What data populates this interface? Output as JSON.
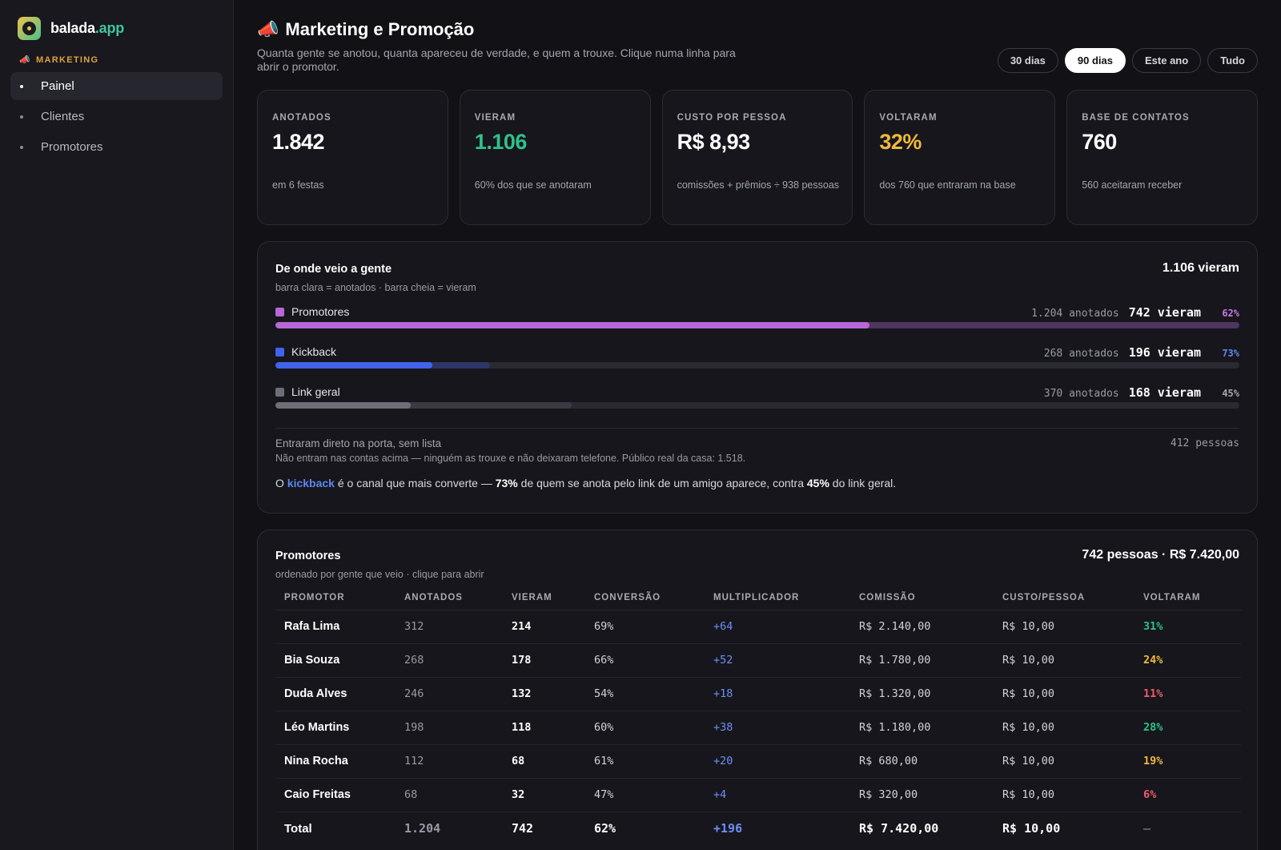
{
  "brand": {
    "name": "balada",
    "tld": ".app",
    "logo_icon": "vinyl-disc-icon"
  },
  "sidebar": {
    "section_label": "MARKETING",
    "section_icon": "megaphone-icon",
    "items": [
      {
        "label": "Painel",
        "active": true
      },
      {
        "label": "Clientes",
        "active": false
      },
      {
        "label": "Promotores",
        "active": false
      }
    ]
  },
  "header": {
    "title": "Marketing e Promoção",
    "title_icon": "megaphone-icon",
    "subtitle": "Quanta gente se anotou, quanta apareceu de verdade, e quem a trouxe. Clique numa linha para abrir o promotor.",
    "ranges": [
      {
        "label": "30 dias",
        "active": false
      },
      {
        "label": "90 dias",
        "active": true
      },
      {
        "label": "Este ano",
        "active": false
      },
      {
        "label": "Tudo",
        "active": false
      }
    ]
  },
  "kpis": [
    {
      "label": "ANOTADOS",
      "value": "1.842",
      "note": "em 6 festas",
      "color": "#ffffff"
    },
    {
      "label": "VIERAM",
      "value": "1.106",
      "note": "60% dos que se anotaram",
      "color": "#2ec28a"
    },
    {
      "label": "CUSTO POR PESSOA",
      "value": "R$ 8,93",
      "note": "comissões + prêmios ÷ 938 pessoas",
      "color": "#ffffff"
    },
    {
      "label": "VOLTARAM",
      "value": "32%",
      "note": "dos 760 que entraram na base",
      "color": "#f0b93b"
    },
    {
      "label": "BASE DE CONTATOS",
      "value": "760",
      "note": "560 aceitaram receber",
      "color": "#ffffff"
    }
  ],
  "sources": {
    "title": "De onde veio a gente",
    "subtitle": "barra clara = anotados · barra cheia = vieram",
    "total": "1.106 vieram",
    "rows": [
      {
        "label": "Promotores",
        "anotados": "1.204 anotados",
        "vieram": "742 vieram",
        "pct": "62%",
        "anotados_share": 1.0,
        "vieram_share": 0.616,
        "color": "#b866d8",
        "light_color": "#4f3560",
        "pct_color": "#c77ae0"
      },
      {
        "label": "Kickback",
        "anotados": "268 anotados",
        "vieram": "196 vieram",
        "pct": "73%",
        "anotados_share": 0.223,
        "vieram_share": 0.163,
        "color": "#4263eb",
        "light_color": "#2d3666",
        "pct_color": "#5f86f0"
      },
      {
        "label": "Link geral",
        "anotados": "370 anotados",
        "vieram": "168 vieram",
        "pct": "45%",
        "anotados_share": 0.307,
        "vieram_share": 0.14,
        "color": "#6e6e78",
        "light_color": "#3a3a44",
        "pct_color": "#a5a5b0"
      }
    ],
    "direct_label": "Entraram direto na porta, sem lista",
    "direct_note": "Não entram nas contas acima — ninguém as trouxe e não deixaram telefone. Público real da casa: 1.518.",
    "direct_count": "412 pessoas",
    "insight": {
      "p1": "O ",
      "hl": "kickback",
      "p2": " é o canal que mais converte — ",
      "b1": "73%",
      "p3": " de quem se anota pelo link de um amigo aparece, contra ",
      "b2": "45%",
      "p4": " do link geral."
    }
  },
  "promoters": {
    "title": "Promotores",
    "subtitle": "ordenado por gente que veio · clique para abrir",
    "total": "742 pessoas · R$ 7.420,00",
    "columns": [
      "PROMOTOR",
      "ANOTADOS",
      "VIERAM",
      "CONVERSÃO",
      "MULTIPLICADOR",
      "COMISSÃO",
      "CUSTO/PESSOA",
      "VOLTARAM"
    ],
    "rows": [
      {
        "name": "Rafa Lima",
        "anotados": "312",
        "vieram": "214",
        "conversao": "69%",
        "mult": "+64",
        "comissao": "R$ 2.140,00",
        "custo": "R$ 10,00",
        "voltaram": "31%",
        "volt_color": "#2ec28a"
      },
      {
        "name": "Bia Souza",
        "anotados": "268",
        "vieram": "178",
        "conversao": "66%",
        "mult": "+52",
        "comissao": "R$ 1.780,00",
        "custo": "R$ 10,00",
        "voltaram": "24%",
        "volt_color": "#f0b93b"
      },
      {
        "name": "Duda Alves",
        "anotados": "246",
        "vieram": "132",
        "conversao": "54%",
        "mult": "+18",
        "comissao": "R$ 1.320,00",
        "custo": "R$ 10,00",
        "voltaram": "11%",
        "volt_color": "#ef5b6a"
      },
      {
        "name": "Léo Martins",
        "anotados": "198",
        "vieram": "118",
        "conversao": "60%",
        "mult": "+38",
        "comissao": "R$ 1.180,00",
        "custo": "R$ 10,00",
        "voltaram": "28%",
        "volt_color": "#2ec28a"
      },
      {
        "name": "Nina Rocha",
        "anotados": "112",
        "vieram": "68",
        "conversao": "61%",
        "mult": "+20",
        "comissao": "R$ 680,00",
        "custo": "R$ 10,00",
        "voltaram": "19%",
        "volt_color": "#f0b93b"
      },
      {
        "name": "Caio Freitas",
        "anotados": "68",
        "vieram": "32",
        "conversao": "47%",
        "mult": "+4",
        "comissao": "R$ 320,00",
        "custo": "R$ 10,00",
        "voltaram": "6%",
        "volt_color": "#ef5b6a"
      }
    ],
    "total_row": {
      "name": "Total",
      "anotados": "1.204",
      "vieram": "742",
      "conversao": "62%",
      "mult": "+196",
      "comissao": "R$ 7.420,00",
      "custo": "R$ 10,00",
      "voltaram": "—"
    }
  }
}
